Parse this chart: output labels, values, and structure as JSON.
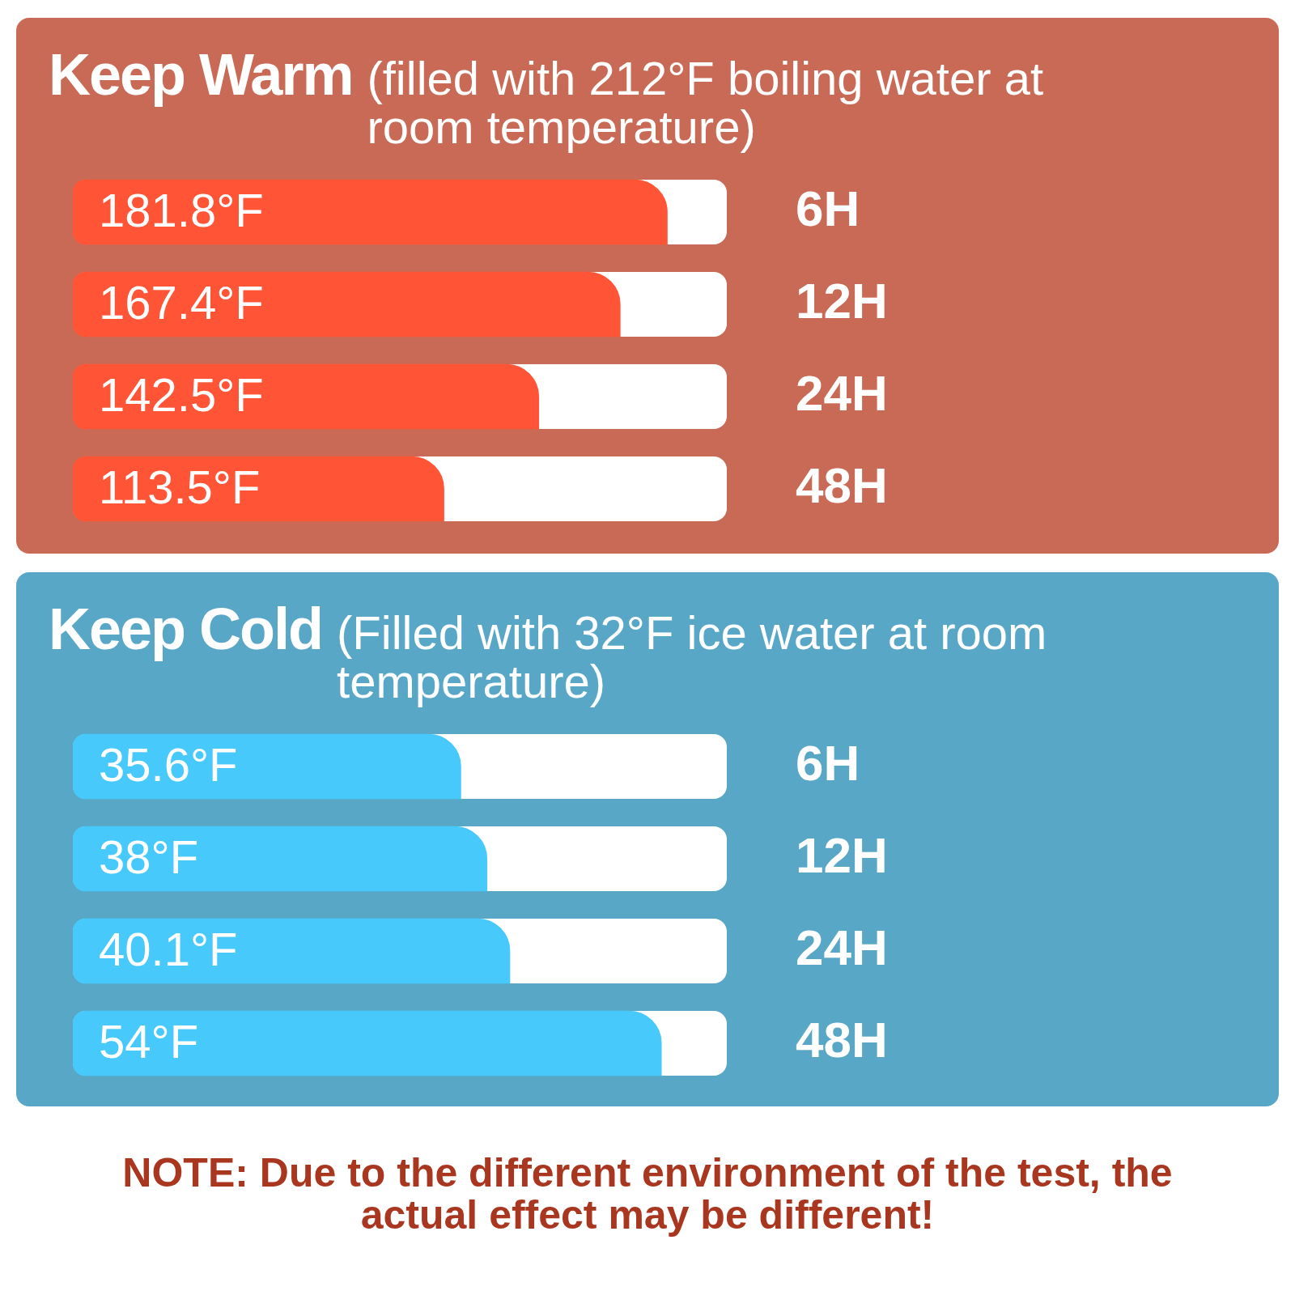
{
  "chart_data": [
    {
      "type": "bar",
      "orientation": "horizontal",
      "title": "Keep Warm",
      "subtitle": "(filled with 212°F boiling water at room temperature)",
      "categories": [
        "6H",
        "12H",
        "24H",
        "48H"
      ],
      "values": [
        181.8,
        167.4,
        142.5,
        113.5
      ],
      "value_labels": [
        "181.8°F",
        "167.4°F",
        "142.5°F",
        "113.5°F"
      ],
      "color": "#ff5436",
      "tick_labels": "y"
    },
    {
      "type": "bar",
      "orientation": "horizontal",
      "title": "Keep Cold",
      "subtitle": "(Filled with 32°F ice water at room temperature)",
      "categories": [
        "6H",
        "12H",
        "24H",
        "48H"
      ],
      "values": [
        35.6,
        38,
        40.1,
        54
      ],
      "value_labels": [
        "35.6°F",
        "38°F",
        "40.1°F",
        "54°F"
      ],
      "color": "#48c9fb",
      "tick_labels": "y",
      "annotations": [
        "NOTE: Due to the different environment of the test, the actual effect may be different!"
      ]
    }
  ]
}
